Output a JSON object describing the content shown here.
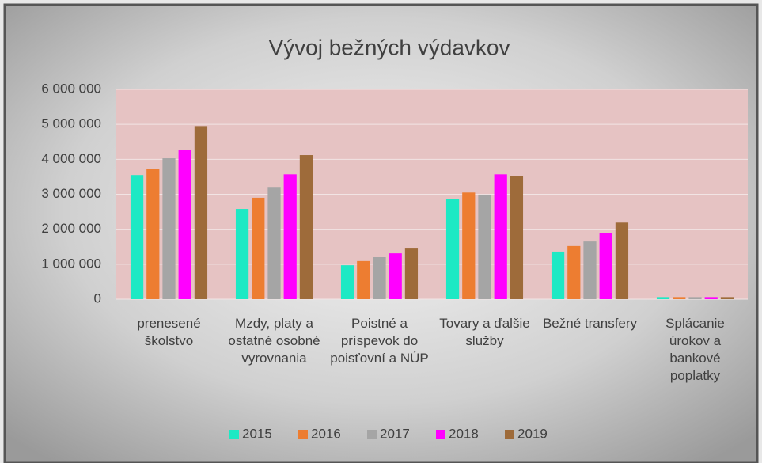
{
  "chart_data": {
    "type": "bar",
    "title": "Vývoj bežných výdavkov",
    "categories": [
      "prenesené školstvo",
      "Mzdy, platy a ostatné osobné vyrovnania",
      "Poistné a príspevok do poisťovní a NÚP",
      "Tovary a ďalšie služby",
      "Bežné transfery",
      "Splácanie úrokov a bankové poplatky"
    ],
    "series": [
      {
        "name": "2015",
        "color": "#1de9c4",
        "values": [
          3550000,
          2580000,
          970000,
          2870000,
          1360000,
          60000
        ]
      },
      {
        "name": "2016",
        "color": "#ed7d31",
        "values": [
          3730000,
          2900000,
          1090000,
          3050000,
          1520000,
          60000
        ]
      },
      {
        "name": "2017",
        "color": "#a5a5a5",
        "values": [
          4030000,
          3210000,
          1200000,
          2990000,
          1650000,
          60000
        ]
      },
      {
        "name": "2018",
        "color": "#ff00ff",
        "values": [
          4270000,
          3570000,
          1310000,
          3570000,
          1880000,
          60000
        ]
      },
      {
        "name": "2019",
        "color": "#9e6b3a",
        "values": [
          4950000,
          4120000,
          1470000,
          3530000,
          2190000,
          60000
        ]
      }
    ],
    "ylim": [
      0,
      6000000
    ],
    "yticks": [
      0,
      {
        "value": 1000000,
        "label": "1 000 000"
      },
      {
        "value": 2000000,
        "label": "2 000 000"
      },
      {
        "value": 3000000,
        "label": "3 000 000"
      },
      {
        "value": 4000000,
        "label": "4 000 000"
      },
      {
        "value": 5000000,
        "label": "5 000 000"
      },
      {
        "value": 6000000,
        "label": "6 000 000"
      }
    ],
    "grid": true,
    "legend": "bottom"
  }
}
